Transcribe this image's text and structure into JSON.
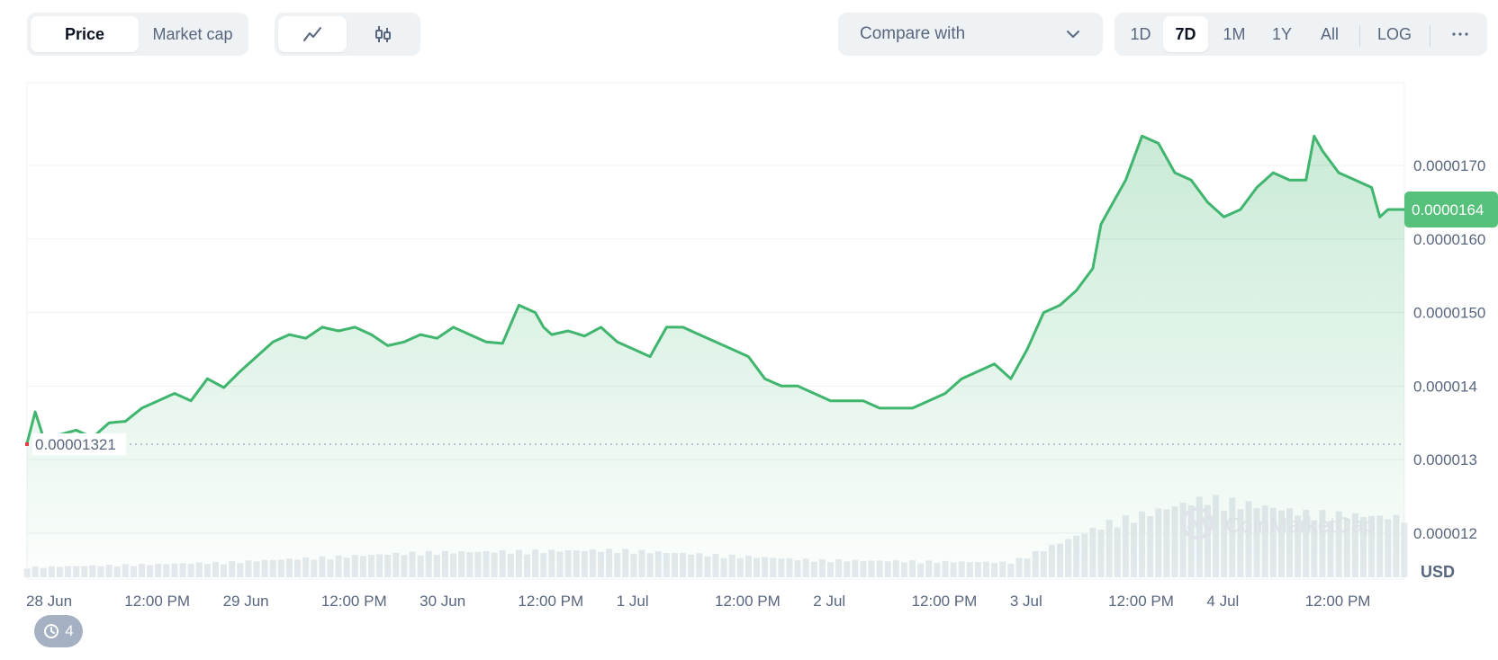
{
  "toolbar": {
    "metric_tabs": [
      {
        "label": "Price",
        "active": true
      },
      {
        "label": "Market cap",
        "active": false
      }
    ],
    "chart_type_icons": [
      {
        "icon": "line-chart-icon",
        "active": true
      },
      {
        "icon": "candlestick-icon",
        "active": false
      }
    ],
    "compare_label": "Compare with",
    "ranges": [
      {
        "label": "1D",
        "active": false
      },
      {
        "label": "7D",
        "active": true
      },
      {
        "label": "1M",
        "active": false
      },
      {
        "label": "1Y",
        "active": false
      },
      {
        "label": "All",
        "active": false
      }
    ],
    "log_label": "LOG",
    "more_icon": "more-dots-icon"
  },
  "watermark": "CoinMarketCap",
  "history_count": "4",
  "colors": {
    "line": "#3fb56e",
    "price_tag": "#55c17b",
    "baseline_marker": "#ea3943",
    "grid": "#eef0f3",
    "axis_text": "#58667e",
    "volume": "#e6e9ee"
  },
  "chart_data": {
    "type": "line",
    "currency": "USD",
    "ylim": [
      1.14e-05,
      1.81e-05
    ],
    "y_ticks": [
      {
        "value": 1.7e-05,
        "label": "0.0000170"
      },
      {
        "value": 1.6e-05,
        "label": "0.0000160"
      },
      {
        "value": 1.5e-05,
        "label": "0.0000150"
      },
      {
        "value": 1.4e-05,
        "label": "0.000014"
      },
      {
        "value": 1.3e-05,
        "label": "0.000013"
      },
      {
        "value": 1.2e-05,
        "label": "0.000012"
      }
    ],
    "x_ticks": [
      "28 Jun",
      "12:00 PM",
      "29 Jun",
      "12:00 PM",
      "30 Jun",
      "12:00 PM",
      "1 Jul",
      "12:00 PM",
      "2 Jul",
      "12:00 PM",
      "3 Jul",
      "12:00 PM",
      "4 Jul",
      "12:00 PM"
    ],
    "x_range_hours": [
      0,
      168
    ],
    "current_price": {
      "value": 1.64e-05,
      "label": "0.0000164"
    },
    "baseline_price": {
      "value": 1.321e-05,
      "label": "0.00001321"
    },
    "price_series": [
      [
        0,
        1.322e-05
      ],
      [
        1,
        1.365e-05
      ],
      [
        2,
        1.33e-05
      ],
      [
        4,
        1.334e-05
      ],
      [
        6,
        1.34e-05
      ],
      [
        8,
        1.33e-05
      ],
      [
        10,
        1.35e-05
      ],
      [
        12,
        1.352e-05
      ],
      [
        14,
        1.37e-05
      ],
      [
        16,
        1.38e-05
      ],
      [
        18,
        1.39e-05
      ],
      [
        20,
        1.38e-05
      ],
      [
        22,
        1.41e-05
      ],
      [
        24,
        1.398e-05
      ],
      [
        26,
        1.42e-05
      ],
      [
        28,
        1.44e-05
      ],
      [
        30,
        1.46e-05
      ],
      [
        32,
        1.47e-05
      ],
      [
        34,
        1.465e-05
      ],
      [
        36,
        1.48e-05
      ],
      [
        38,
        1.475e-05
      ],
      [
        40,
        1.48e-05
      ],
      [
        42,
        1.47e-05
      ],
      [
        44,
        1.455e-05
      ],
      [
        46,
        1.46e-05
      ],
      [
        48,
        1.47e-05
      ],
      [
        50,
        1.465e-05
      ],
      [
        52,
        1.48e-05
      ],
      [
        54,
        1.47e-05
      ],
      [
        56,
        1.46e-05
      ],
      [
        58,
        1.458e-05
      ],
      [
        60,
        1.51e-05
      ],
      [
        62,
        1.5e-05
      ],
      [
        63,
        1.48e-05
      ],
      [
        64,
        1.47e-05
      ],
      [
        66,
        1.475e-05
      ],
      [
        68,
        1.468e-05
      ],
      [
        70,
        1.48e-05
      ],
      [
        72,
        1.46e-05
      ],
      [
        74,
        1.45e-05
      ],
      [
        76,
        1.44e-05
      ],
      [
        78,
        1.48e-05
      ],
      [
        80,
        1.48e-05
      ],
      [
        82,
        1.47e-05
      ],
      [
        84,
        1.46e-05
      ],
      [
        86,
        1.45e-05
      ],
      [
        88,
        1.44e-05
      ],
      [
        90,
        1.41e-05
      ],
      [
        92,
        1.4e-05
      ],
      [
        94,
        1.4e-05
      ],
      [
        96,
        1.39e-05
      ],
      [
        98,
        1.38e-05
      ],
      [
        100,
        1.38e-05
      ],
      [
        102,
        1.38e-05
      ],
      [
        104,
        1.37e-05
      ],
      [
        106,
        1.37e-05
      ],
      [
        108,
        1.37e-05
      ],
      [
        110,
        1.38e-05
      ],
      [
        112,
        1.39e-05
      ],
      [
        114,
        1.41e-05
      ],
      [
        116,
        1.42e-05
      ],
      [
        118,
        1.43e-05
      ],
      [
        120,
        1.41e-05
      ],
      [
        122,
        1.45e-05
      ],
      [
        124,
        1.5e-05
      ],
      [
        126,
        1.51e-05
      ],
      [
        128,
        1.53e-05
      ],
      [
        130,
        1.56e-05
      ],
      [
        131,
        1.62e-05
      ],
      [
        132,
        1.64e-05
      ],
      [
        134,
        1.68e-05
      ],
      [
        136,
        1.74e-05
      ],
      [
        138,
        1.73e-05
      ],
      [
        140,
        1.69e-05
      ],
      [
        142,
        1.68e-05
      ],
      [
        144,
        1.65e-05
      ],
      [
        146,
        1.63e-05
      ],
      [
        148,
        1.64e-05
      ],
      [
        150,
        1.67e-05
      ],
      [
        152,
        1.69e-05
      ],
      [
        154,
        1.68e-05
      ],
      [
        156,
        1.68e-05
      ],
      [
        157,
        1.74e-05
      ],
      [
        158,
        1.72e-05
      ],
      [
        160,
        1.69e-05
      ],
      [
        162,
        1.68e-05
      ],
      [
        164,
        1.67e-05
      ],
      [
        165,
        1.63e-05
      ],
      [
        166,
        1.64e-05
      ],
      [
        168,
        1.64e-05
      ]
    ],
    "volume_series": [
      [
        0,
        0.4
      ],
      [
        24,
        0.6
      ],
      [
        48,
        1.0
      ],
      [
        72,
        1.1
      ],
      [
        96,
        0.7
      ],
      [
        120,
        0.6
      ],
      [
        132,
        2.2
      ],
      [
        144,
        3.2
      ],
      [
        156,
        2.6
      ],
      [
        168,
        2.4
      ]
    ]
  }
}
